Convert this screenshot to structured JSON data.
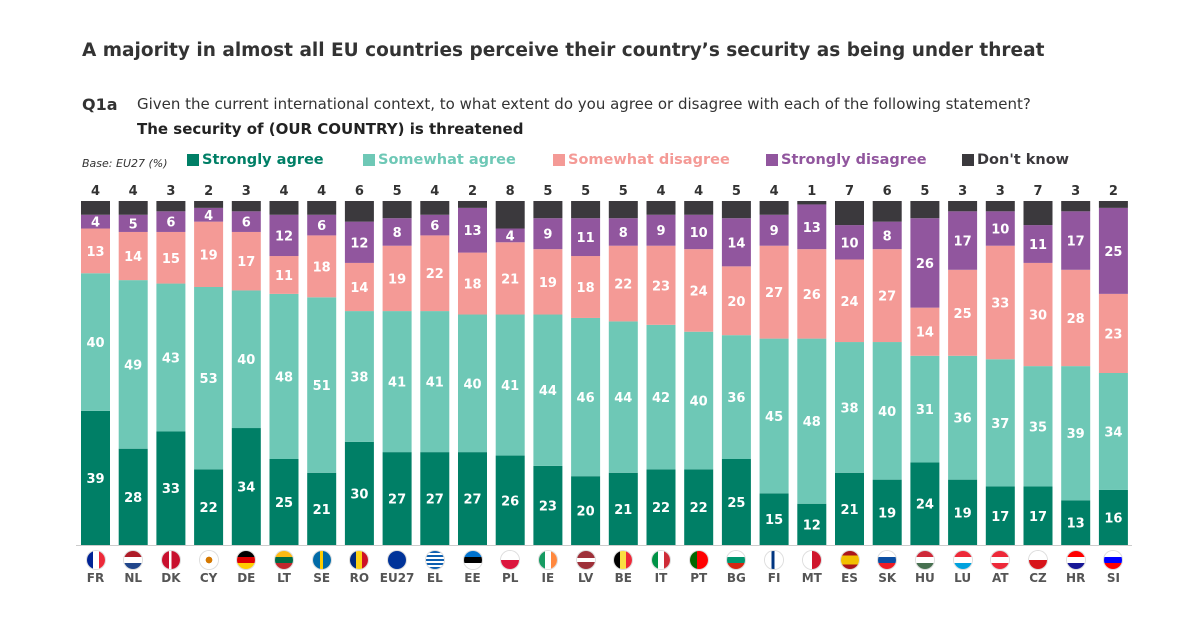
{
  "title": "A majority in almost all EU countries perceive their country’s security as being under threat",
  "question": {
    "id": "Q1a",
    "text": "Given the current international context, to what extent do you agree or disagree with each of the following statement?",
    "statement": "The security of (OUR COUNTRY) is threatened"
  },
  "base": "Base: EU27 (%)",
  "chart_data": {
    "type": "bar",
    "stacked": true,
    "ylim": [
      0,
      100
    ],
    "categories": [
      "FR",
      "NL",
      "DK",
      "CY",
      "DE",
      "LT",
      "SE",
      "RO",
      "EU27",
      "EL",
      "EE",
      "PL",
      "IE",
      "LV",
      "BE",
      "IT",
      "PT",
      "BG",
      "FI",
      "MT",
      "ES",
      "SK",
      "HU",
      "LU",
      "AT",
      "CZ",
      "HR",
      "SI"
    ],
    "series": [
      {
        "name": "Strongly agree",
        "color": "#007f66",
        "values": [
          39,
          28,
          33,
          22,
          34,
          25,
          21,
          30,
          27,
          27,
          27,
          26,
          23,
          20,
          21,
          22,
          22,
          25,
          15,
          12,
          21,
          19,
          24,
          19,
          17,
          17,
          13,
          16
        ]
      },
      {
        "name": "Somewhat agree",
        "color": "#6ec8b6",
        "values": [
          40,
          49,
          43,
          53,
          40,
          48,
          51,
          38,
          41,
          41,
          40,
          41,
          44,
          46,
          44,
          42,
          40,
          36,
          45,
          48,
          38,
          40,
          31,
          36,
          37,
          35,
          39,
          34
        ]
      },
      {
        "name": "Somewhat disagree",
        "color": "#f49a96",
        "values": [
          13,
          14,
          15,
          19,
          17,
          11,
          18,
          14,
          19,
          22,
          18,
          21,
          19,
          18,
          22,
          23,
          24,
          20,
          27,
          26,
          24,
          27,
          14,
          25,
          33,
          30,
          28,
          23
        ]
      },
      {
        "name": "Strongly disagree",
        "color": "#91569e",
        "values": [
          4,
          5,
          6,
          4,
          6,
          12,
          6,
          12,
          8,
          6,
          13,
          4,
          9,
          11,
          8,
          9,
          10,
          14,
          9,
          13,
          10,
          8,
          26,
          17,
          10,
          11,
          17,
          25
        ]
      },
      {
        "name": "Don't know",
        "color": "#3b393d",
        "values": [
          4,
          4,
          3,
          2,
          3,
          4,
          4,
          6,
          5,
          4,
          2,
          8,
          5,
          5,
          5,
          4,
          4,
          5,
          4,
          1,
          7,
          6,
          5,
          3,
          3,
          7,
          3,
          2
        ]
      }
    ]
  }
}
